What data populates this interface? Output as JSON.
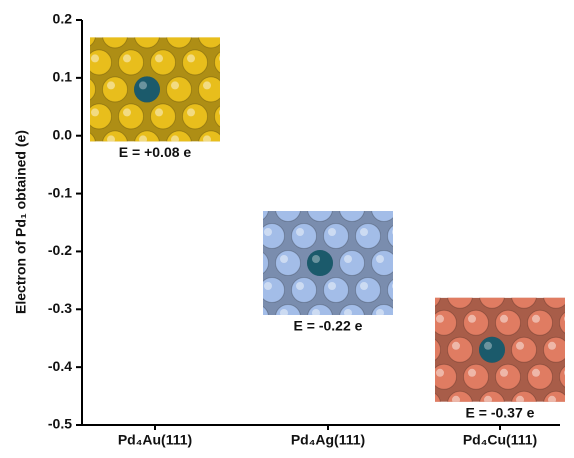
{
  "chart_data": {
    "type": "image-marker",
    "y_label": "Electron of Pd₁ obtained (e)",
    "categories": [
      "Pd₄Au(111)",
      "Pd₄Ag(111)",
      "Pd₄Cu(111)"
    ],
    "values": [
      0.08,
      -0.22,
      -0.37
    ],
    "value_labels": [
      "E = +0.08 e",
      "E = -0.22 e",
      "E = -0.37 e"
    ],
    "colors": [
      "#e8be1c",
      "#a3bde8",
      "#e07c62"
    ],
    "center_atom_color": "#1b5a6b",
    "ylim": [
      -0.5,
      0.2
    ],
    "yticks": [
      -0.5,
      -0.4,
      -0.3,
      -0.2,
      -0.1,
      {
        "value": 0,
        "label": "0.0"
      },
      0.1,
      0.2
    ]
  }
}
